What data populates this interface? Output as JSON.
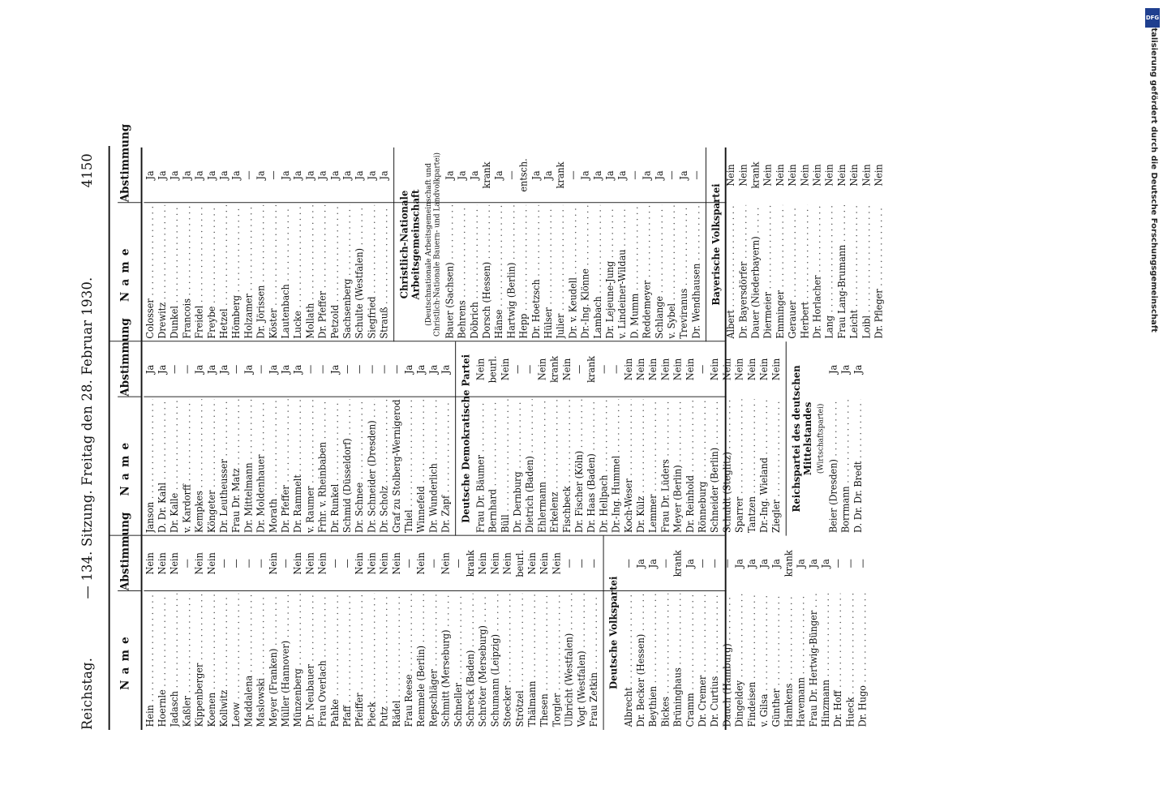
{
  "header": {
    "left": "Reichstag.",
    "center": "— 134. Sitzung. Freitag den 28. Februar 1930.",
    "page": "4150"
  },
  "column_headers": {
    "name": "Name",
    "vote": "Abstimmung"
  },
  "columns": [
    {
      "blocks": [
        {
          "rows": [
            {
              "name": "Hein",
              "vote": "Nein"
            },
            {
              "name": "Hoernle",
              "vote": "Nein"
            },
            {
              "name": "Jadasch",
              "vote": "Nein"
            },
            {
              "name": "Kaßler",
              "vote": "—"
            },
            {
              "name": "Kippenberger",
              "vote": "Nein"
            },
            {
              "name": "Koenen",
              "vote": "Nein"
            },
            {
              "name": "Kollwitz",
              "vote": "—"
            },
            {
              "name": "Leow",
              "vote": "—"
            },
            {
              "name": "Maddalena",
              "vote": "—"
            },
            {
              "name": "Maslowski",
              "vote": "—"
            },
            {
              "name": "Meyer (Franken)",
              "vote": "Nein"
            },
            {
              "name": "Müller (Hannover)",
              "vote": "—"
            },
            {
              "name": "Münzenberg",
              "vote": "Nein"
            },
            {
              "name": "Dr. Neubauer",
              "vote": "Nein"
            },
            {
              "name": "Frau Overlach",
              "vote": "Nein"
            },
            {
              "name": "Pahke",
              "vote": "—"
            },
            {
              "name": "Pfaff",
              "vote": "—"
            },
            {
              "name": "Pfeiffer",
              "vote": "Nein"
            },
            {
              "name": "Pieck",
              "vote": "Nein"
            },
            {
              "name": "Putz",
              "vote": "Nein"
            },
            {
              "name": "Rädel",
              "vote": "Nein"
            },
            {
              "name": "Frau Reese",
              "vote": "—"
            },
            {
              "name": "Remmele (Berlin)",
              "vote": "Nein"
            },
            {
              "name": "Repschläger",
              "vote": "—"
            },
            {
              "name": "Schmitt (Merseburg)",
              "vote": "Nein"
            },
            {
              "name": "Schneller",
              "vote": "—"
            },
            {
              "name": "Schreck (Baden)",
              "vote": "krank"
            },
            {
              "name": "Schröter (Merseburg)",
              "vote": "Nein"
            },
            {
              "name": "Schumann (Leipzig)",
              "vote": "Nein"
            },
            {
              "name": "Stoecker",
              "vote": "Nein"
            },
            {
              "name": "Strötzel",
              "vote": "beurl."
            },
            {
              "name": "Thälmann",
              "vote": "Nein"
            },
            {
              "name": "Thesen",
              "vote": "Nein"
            },
            {
              "name": "Torgler",
              "vote": "Nein"
            },
            {
              "name": "Ulbricht (Westfalen)",
              "vote": "—"
            },
            {
              "name": "Vogt (Westfalen)",
              "vote": "—"
            },
            {
              "name": "Frau Zetkin",
              "vote": "—"
            }
          ]
        },
        {
          "title": "Deutsche Volkspartei",
          "rows": [
            {
              "name": "Albrecht",
              "vote": "—"
            },
            {
              "name": "Dr. Becker (Hessen)",
              "vote": "Ja"
            },
            {
              "name": "Beythien",
              "vote": "Ja"
            },
            {
              "name": "Bickes",
              "vote": "—"
            },
            {
              "name": "Brüninghaus",
              "vote": "krank"
            },
            {
              "name": "Cramm",
              "vote": "Ja"
            },
            {
              "name": "Dr. Cremer",
              "vote": "—"
            },
            {
              "name": "Dr. Curtius",
              "vote": "—"
            },
            {
              "name": "Dauch (Hamburg)",
              "vote": "—"
            },
            {
              "name": "Dingeldey",
              "vote": "Ja"
            },
            {
              "name": "Findeisen",
              "vote": "Ja"
            },
            {
              "name": "v. Gilsa",
              "vote": "Ja"
            },
            {
              "name": "Günther",
              "vote": "Ja"
            },
            {
              "name": "Hamkens",
              "vote": "krank"
            },
            {
              "name": "Havemann",
              "vote": "Ja"
            },
            {
              "name": "Frau Dr. Hertwig-Bünger",
              "vote": "Ja"
            },
            {
              "name": "Hinzmann",
              "vote": "Ja"
            },
            {
              "name": "Dr. Hoff",
              "vote": "—"
            },
            {
              "name": "Hueck",
              "vote": "—"
            },
            {
              "name": "Dr. Hugo",
              "vote": "—"
            }
          ]
        }
      ]
    },
    {
      "blocks": [
        {
          "rows": [
            {
              "name": "Janson",
              "vote": "Ja"
            },
            {
              "name": "D. Dr. Kahl",
              "vote": "Ja"
            },
            {
              "name": "Dr. Kalle",
              "vote": "—"
            },
            {
              "name": "v. Kardorff",
              "vote": "—"
            },
            {
              "name": "Kempkes",
              "vote": "Ja"
            },
            {
              "name": "Köngeter",
              "vote": "Ja"
            },
            {
              "name": "Dr. Leutheusser",
              "vote": "Ja"
            },
            {
              "name": "Frau Dr. Matz",
              "vote": "—"
            },
            {
              "name": "Dr. Mittelmann",
              "vote": "Ja"
            },
            {
              "name": "Dr. Moldenhauer",
              "vote": "—"
            },
            {
              "name": "Morath",
              "vote": "Ja"
            },
            {
              "name": "Dr. Pfeffer",
              "vote": "Ja"
            },
            {
              "name": "Dr. Rammelt",
              "vote": "Ja"
            },
            {
              "name": "v. Raumer",
              "vote": "—"
            },
            {
              "name": "Frhr. v. Rheinbaben",
              "vote": "—"
            },
            {
              "name": "Dr. Runkel",
              "vote": "Ja"
            },
            {
              "name": "Schmid (Düsseldorf)",
              "vote": "—"
            },
            {
              "name": "Dr. Schnee",
              "vote": "—"
            },
            {
              "name": "Dr. Schneider (Dresden)",
              "vote": "—"
            },
            {
              "name": "Dr. Scholz",
              "vote": "—"
            },
            {
              "name": "Graf zu Stolberg-Wernigerode",
              "vote": "—"
            },
            {
              "name": "Thiel",
              "vote": "Ja"
            },
            {
              "name": "Winnefeld",
              "vote": "Ja"
            },
            {
              "name": "Dr. Wunderlich",
              "vote": "Ja"
            },
            {
              "name": "Dr. Zapf",
              "vote": "Ja"
            }
          ]
        },
        {
          "title": "Deutsche Demokratische Partei",
          "rows": [
            {
              "name": "Frau Dr. Bäumer",
              "vote": "Nein"
            },
            {
              "name": "Bernhard",
              "vote": "beurl."
            },
            {
              "name": "Büll",
              "vote": "Nein"
            },
            {
              "name": "Dr. Dernburg",
              "vote": "—"
            },
            {
              "name": "Dietrich (Baden)",
              "vote": "—"
            },
            {
              "name": "Ehlermann",
              "vote": "Nein"
            },
            {
              "name": "Erkelenz",
              "vote": "krank"
            },
            {
              "name": "Fischbeck",
              "vote": "Nein"
            },
            {
              "name": "Dr. Fischer (Köln)",
              "vote": "—"
            },
            {
              "name": "Dr. Haas (Baden)",
              "vote": "krank"
            },
            {
              "name": "Dr. Hellpach",
              "vote": "—"
            },
            {
              "name": "Dr.-Ing. Hummel",
              "vote": "—"
            },
            {
              "name": "Koch-Weser",
              "vote": "Nein"
            },
            {
              "name": "Dr. Külz",
              "vote": "Nein"
            },
            {
              "name": "Lemmer",
              "vote": "Nein"
            },
            {
              "name": "Frau Dr. Lüders",
              "vote": "Nein"
            },
            {
              "name": "Meyer (Berlin)",
              "vote": "Nein"
            },
            {
              "name": "Dr. Reinhold",
              "vote": "Nein"
            },
            {
              "name": "Rönneburg",
              "vote": "—"
            },
            {
              "name": "Schneider (Berlin)",
              "vote": "Nein"
            },
            {
              "name": "Schuldt (Steglitz)",
              "vote": "Nein"
            },
            {
              "name": "Sparrer",
              "vote": "Nein"
            },
            {
              "name": "Tantzen",
              "vote": "Nein"
            },
            {
              "name": "Dr.-Ing. Wieland",
              "vote": "Nein"
            },
            {
              "name": "Ziegler",
              "vote": "Nein"
            }
          ]
        },
        {
          "title": "Reichspartei des deutschen Mittelstandes",
          "subtitle": "(Wirtschaftspartei)",
          "rows": [
            {
              "name": "Beier (Dresden)",
              "vote": "Ja"
            },
            {
              "name": "Borrmann",
              "vote": "Ja"
            },
            {
              "name": "D. Dr. Dr. Bredt",
              "vote": "Ja"
            }
          ]
        }
      ]
    },
    {
      "blocks": [
        {
          "rows": [
            {
              "name": "Colosser",
              "vote": "Ja"
            },
            {
              "name": "Drewitz",
              "vote": "Ja"
            },
            {
              "name": "Dunkel",
              "vote": "Ja"
            },
            {
              "name": "Francois",
              "vote": "Ja"
            },
            {
              "name": "Freidel",
              "vote": "Ja"
            },
            {
              "name": "Freybe",
              "vote": "Ja"
            },
            {
              "name": "Hetzel",
              "vote": "Ja"
            },
            {
              "name": "Hömberg",
              "vote": "Ja"
            },
            {
              "name": "Holzamer",
              "vote": "—"
            },
            {
              "name": "Dr. Jörissen",
              "vote": "Ja"
            },
            {
              "name": "Köster",
              "vote": "—"
            },
            {
              "name": "Lautenbach",
              "vote": "Ja"
            },
            {
              "name": "Lucke",
              "vote": "Ja"
            },
            {
              "name": "Mollath",
              "vote": "Ja"
            },
            {
              "name": "Dr. Pfeffer",
              "vote": "Ja"
            },
            {
              "name": "Petzold",
              "vote": "Ja"
            },
            {
              "name": "Sachsenberg",
              "vote": "Ja"
            },
            {
              "name": "Schulte (Westfalen)",
              "vote": "Ja"
            },
            {
              "name": "Siegfried",
              "vote": "Ja"
            },
            {
              "name": "Strauß",
              "vote": "Ja"
            }
          ]
        },
        {
          "title": "Christlich-Nationale Arbeitsgemeinschaft",
          "subtitle": "(Deutschnationale Arbeitsgemeinschaft und Christlich-Nationale Bauern- und Landvolkpartei)",
          "rows": [
            {
              "name": "Bauer (Sachsen)",
              "vote": "Ja"
            },
            {
              "name": "Behrens",
              "vote": "Ja"
            },
            {
              "name": "Döbrich",
              "vote": "Ja"
            },
            {
              "name": "Dorsch (Hessen)",
              "vote": "krank"
            },
            {
              "name": "Hänse",
              "vote": "Ja"
            },
            {
              "name": "Hartwig (Berlin)",
              "vote": "—"
            },
            {
              "name": "Hepp",
              "vote": "entsch."
            },
            {
              "name": "Dr. Hoetzsch",
              "vote": "Ja"
            },
            {
              "name": "Hülser",
              "vote": "Ja"
            },
            {
              "name": "Julier",
              "vote": "krank"
            },
            {
              "name": "Dr. v. Keudell",
              "vote": "—"
            },
            {
              "name": "Dr.-Ing. Klönne",
              "vote": "Ja"
            },
            {
              "name": "Lambach",
              "vote": "Ja"
            },
            {
              "name": "Dr. Lejeune-Jung",
              "vote": "Ja"
            },
            {
              "name": "v. Lindeiner-Wildau",
              "vote": "Ja"
            },
            {
              "name": "D. Mumm",
              "vote": "—"
            },
            {
              "name": "Reddemeyer",
              "vote": "Ja"
            },
            {
              "name": "Schlange",
              "vote": "Ja"
            },
            {
              "name": "v. Sybel",
              "vote": "—"
            },
            {
              "name": "Treviranus",
              "vote": "Ja"
            },
            {
              "name": "Dr. Wendhausen",
              "vote": "—"
            }
          ]
        },
        {
          "title": "Bayerische Volkspartei",
          "rows": [
            {
              "name": "Albert",
              "vote": "Nein"
            },
            {
              "name": "Dr. Bayersdörfer",
              "vote": "Nein"
            },
            {
              "name": "Dauer (Niederbayern)",
              "vote": "krank"
            },
            {
              "name": "Diermeier",
              "vote": "Nein"
            },
            {
              "name": "Emminger",
              "vote": "Nein"
            },
            {
              "name": "Gerauer",
              "vote": "Nein"
            },
            {
              "name": "Herbert",
              "vote": "Nein"
            },
            {
              "name": "Dr. Horlacher",
              "vote": "Nein"
            },
            {
              "name": "Lang",
              "vote": "Nein"
            },
            {
              "name": "Frau Lang-Brumann",
              "vote": "Nein"
            },
            {
              "name": "Leicht",
              "vote": "Nein"
            },
            {
              "name": "Loibl",
              "vote": "Nein"
            },
            {
              "name": "Dr. Pfleger",
              "vote": "Nein"
            }
          ]
        }
      ]
    }
  ],
  "sidebar_text": "Digitalisierung gefördert durch die Deutsche Forschungsgemeinschaft",
  "dfg_logo": "DFG"
}
